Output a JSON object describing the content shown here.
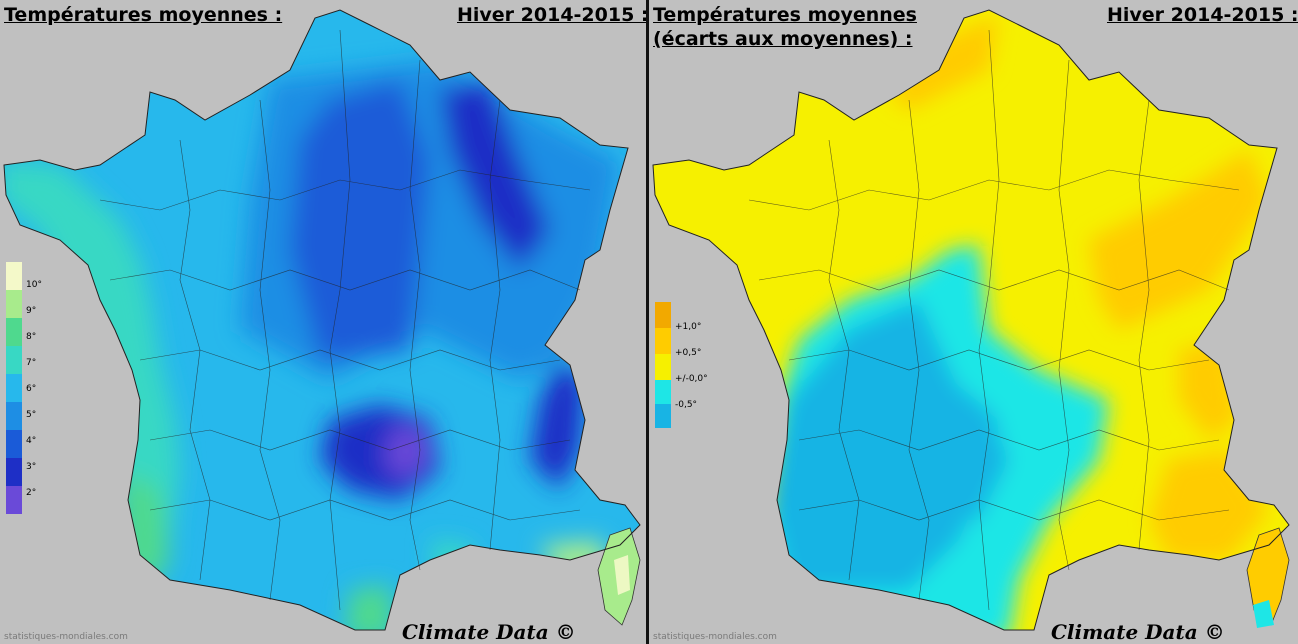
{
  "left_map": {
    "title": "Températures moyennes :",
    "season": "Hiver 2014-2015 :",
    "credit": "Climate Data ©",
    "site": "statistiques-mondiales.com",
    "legend": [
      {
        "label": "10°",
        "color": "#f4f9c9"
      },
      {
        "label": "9°",
        "color": "#a8eb8c"
      },
      {
        "label": "8°",
        "color": "#4fd98e"
      },
      {
        "label": "7°",
        "color": "#38d8c4"
      },
      {
        "label": "6°",
        "color": "#27b8ec"
      },
      {
        "label": "5°",
        "color": "#1e8ee4"
      },
      {
        "label": "4°",
        "color": "#1a5bd8"
      },
      {
        "label": "3°",
        "color": "#1e2fc6"
      },
      {
        "label": "2°",
        "color": "#6a4ad8"
      }
    ]
  },
  "right_map": {
    "title_line1": "Températures moyennes",
    "title_line2": "(écarts aux moyennes) :",
    "season": "Hiver 2014-2015 :",
    "credit": "Climate Data ©",
    "site": "statistiques-mondiales.com",
    "legend": [
      {
        "label": "+1,0°",
        "color": "#f2a900"
      },
      {
        "label": "+0,5°",
        "color": "#ffcc00"
      },
      {
        "label": "+/-0,0°",
        "color": "#f6f000"
      },
      {
        "label": "-0,5°",
        "color": "#1ee6e6"
      },
      {
        "label": "",
        "color": "#18b4e4"
      }
    ]
  }
}
